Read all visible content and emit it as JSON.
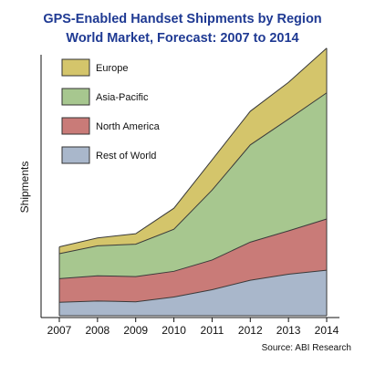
{
  "chart_data": {
    "type": "area",
    "stacked": true,
    "title": "GPS-Enabled Handset Shipments by Region",
    "subtitle": "World Market, Forecast: 2007 to 2014",
    "xlabel": "",
    "ylabel": "Shipments",
    "source": "Source: ABI Research",
    "categories": [
      "2007",
      "2008",
      "2009",
      "2010",
      "2011",
      "2012",
      "2013",
      "2014"
    ],
    "ylim": [
      0,
      100
    ],
    "y_unit_note": "no y-axis ticks shown; values are relative heights on the plotted scale",
    "grid": false,
    "legend_position": "top-left",
    "series": [
      {
        "name": "Rest of World",
        "color": "#a9b7cb",
        "values": [
          5.8,
          6.3,
          6.0,
          7.8,
          10.6,
          14.2,
          16.5,
          18.0
        ]
      },
      {
        "name": "North America",
        "color": "#c97b78",
        "values": [
          9.0,
          9.6,
          9.6,
          9.8,
          11.3,
          14.5,
          16.5,
          19.5
        ]
      },
      {
        "name": "Asia-Pacific",
        "color": "#a7c78f",
        "values": [
          9.5,
          11.4,
          12.3,
          16.0,
          26.6,
          37.0,
          42.5,
          48.0
        ]
      },
      {
        "name": "Europe",
        "color": "#d4c56b",
        "values": [
          2.6,
          3.0,
          4.0,
          8.0,
          11.5,
          12.8,
          14.0,
          17.0
        ]
      }
    ]
  },
  "title_color": "#1f3a93"
}
